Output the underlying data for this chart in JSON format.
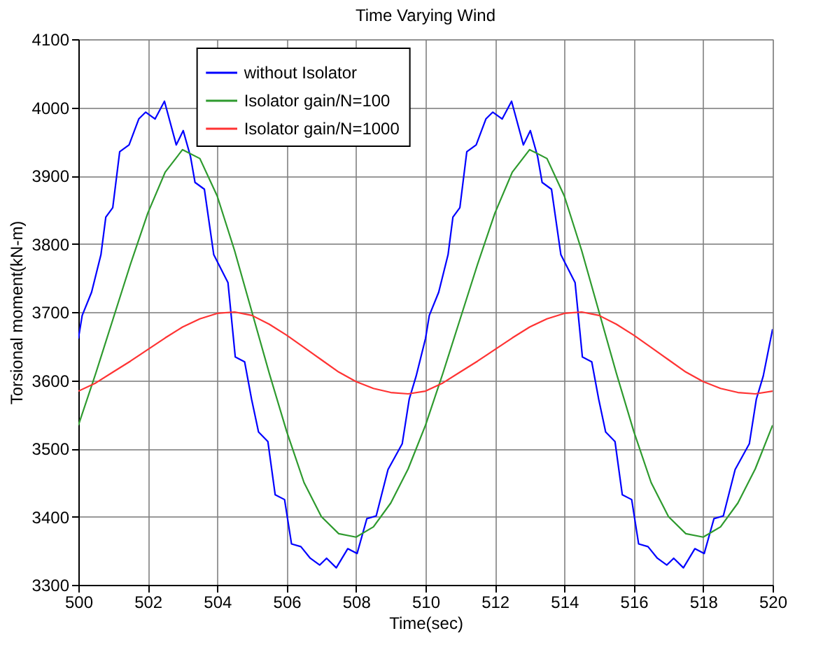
{
  "chart_data": {
    "type": "line",
    "title": "Time Varying Wind",
    "xlabel": "Time(sec)",
    "ylabel": "Torsional moment(kN-m)",
    "xlim": [
      500,
      520
    ],
    "xticks": [
      500,
      502,
      504,
      506,
      508,
      510,
      512,
      514,
      516,
      518,
      520
    ],
    "ylim": [
      3300,
      4100
    ],
    "yticks": [
      3300,
      3400,
      3500,
      3600,
      3700,
      3800,
      3900,
      4000,
      4100
    ],
    "grid": true,
    "legend": "top",
    "marker": "none",
    "line_style": "solid",
    "series": [
      {
        "name": "without Isolator",
        "color": "#0000ff",
        "x": [
          500.0,
          500.11,
          500.38,
          500.65,
          500.79,
          500.99,
          501.19,
          501.46,
          501.74,
          501.94,
          502.21,
          502.48,
          502.82,
          503.02,
          503.23,
          503.36,
          503.63,
          503.9,
          504.31,
          504.52,
          504.79,
          504.99,
          505.19,
          505.46,
          505.67,
          505.94,
          506.14,
          506.41,
          506.68,
          506.95,
          507.15,
          507.43,
          507.76,
          508.03,
          508.31,
          508.58,
          508.92,
          509.33,
          509.53,
          509.73,
          510.0,
          510.11,
          510.38,
          510.65,
          510.79,
          510.99,
          511.19,
          511.46,
          511.74,
          511.94,
          512.21,
          512.48,
          512.82,
          513.02,
          513.23,
          513.36,
          513.63,
          513.9,
          514.31,
          514.52,
          514.79,
          514.99,
          515.19,
          515.46,
          515.67,
          515.94,
          516.14,
          516.41,
          516.68,
          516.95,
          517.15,
          517.43,
          517.76,
          518.03,
          518.31,
          518.58,
          518.92,
          519.33,
          519.53,
          519.73,
          520.0
        ],
        "values": [
          3661,
          3695,
          3729,
          3784,
          3839,
          3853,
          3935,
          3945,
          3983,
          3993,
          3983,
          4009,
          3945,
          3966,
          3928,
          3890,
          3880,
          3784,
          3743,
          3634,
          3627,
          3572,
          3524,
          3510,
          3432,
          3425,
          3360,
          3356,
          3339,
          3329,
          3339,
          3325,
          3353,
          3346,
          3397,
          3401,
          3469,
          3507,
          3572,
          3606,
          3661,
          3695,
          3729,
          3784,
          3839,
          3853,
          3935,
          3945,
          3983,
          3993,
          3983,
          4009,
          3945,
          3966,
          3928,
          3890,
          3880,
          3784,
          3743,
          3634,
          3627,
          3572,
          3524,
          3510,
          3432,
          3425,
          3360,
          3356,
          3339,
          3329,
          3339,
          3325,
          3353,
          3346,
          3397,
          3401,
          3469,
          3507,
          3572,
          3606,
          3675
        ]
      },
      {
        "name": "Isolator gain/N=100",
        "color": "#2e9a2e",
        "x": [
          500,
          500.5,
          501,
          501.5,
          502,
          502.5,
          503,
          503.5,
          504,
          504.5,
          505,
          505.5,
          506,
          506.5,
          507,
          507.5,
          508,
          508.5,
          509,
          509.5,
          510,
          510.5,
          511,
          511.5,
          512,
          512.5,
          513,
          513.5,
          514,
          514.5,
          515,
          515.5,
          516,
          516.5,
          517,
          517.5,
          518,
          518.5,
          519,
          519.5,
          520
        ],
        "values": [
          3534,
          3610,
          3690,
          3770,
          3845,
          3905,
          3938,
          3925,
          3870,
          3790,
          3700,
          3610,
          3525,
          3450,
          3400,
          3375,
          3370,
          3385,
          3420,
          3470,
          3534,
          3610,
          3690,
          3770,
          3845,
          3905,
          3938,
          3925,
          3870,
          3790,
          3700,
          3610,
          3525,
          3450,
          3400,
          3375,
          3370,
          3385,
          3420,
          3470,
          3534
        ]
      },
      {
        "name": "Isolator gain/N=1000",
        "color": "#ff3333",
        "x": [
          500,
          500.5,
          501,
          501.5,
          502,
          502.5,
          503,
          503.5,
          504,
          504.5,
          505,
          505.5,
          506,
          506.5,
          507,
          507.5,
          508,
          508.5,
          509,
          509.5,
          510,
          510.5,
          511,
          511.5,
          512,
          512.5,
          513,
          513.5,
          514,
          514.5,
          515,
          515.5,
          516,
          516.5,
          517,
          517.5,
          518,
          518.5,
          519,
          519.5,
          520
        ],
        "values": [
          3584,
          3596,
          3612,
          3628,
          3645,
          3662,
          3678,
          3690,
          3698,
          3700,
          3695,
          3682,
          3666,
          3648,
          3630,
          3612,
          3598,
          3588,
          3582,
          3580,
          3584,
          3596,
          3612,
          3628,
          3645,
          3662,
          3678,
          3690,
          3698,
          3700,
          3695,
          3682,
          3666,
          3648,
          3630,
          3612,
          3598,
          3588,
          3582,
          3580,
          3584
        ]
      }
    ]
  }
}
